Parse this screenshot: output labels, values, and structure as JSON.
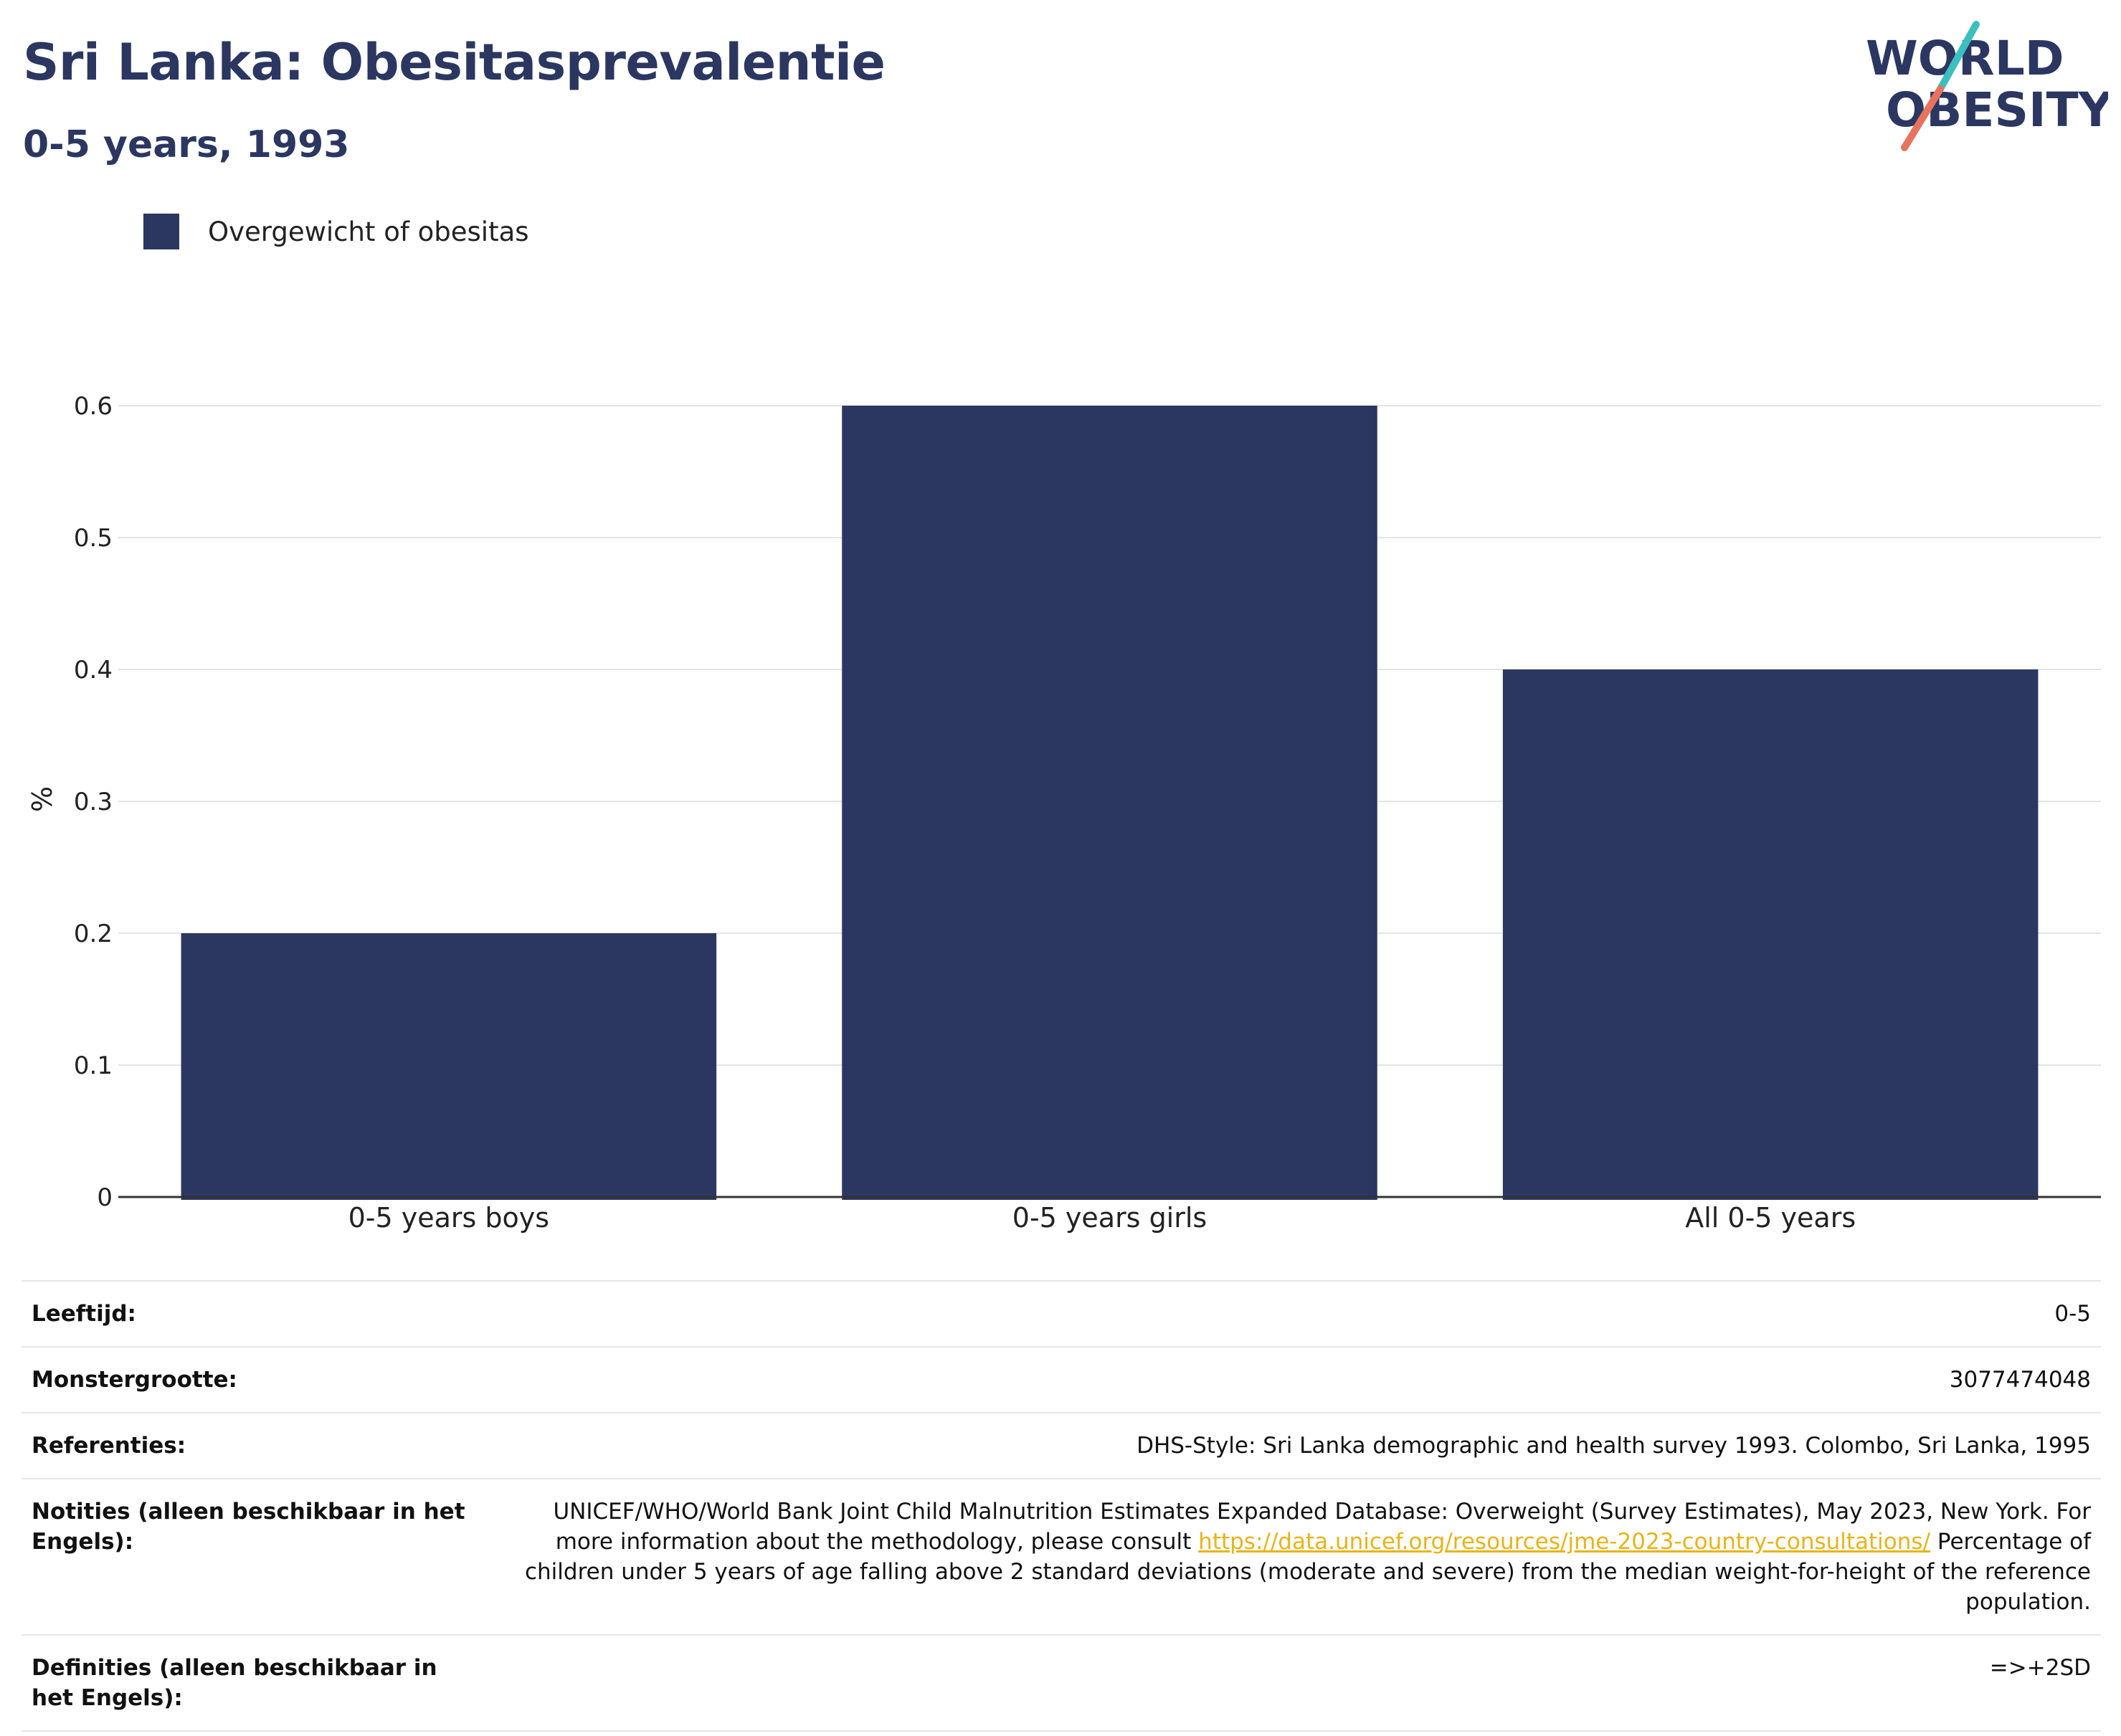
{
  "header": {
    "title": "Sri Lanka: Obesitasprevalentie",
    "subtitle": "0-5 years, 1993"
  },
  "logo": {
    "line1": "WORLD",
    "line2": "OBESITY",
    "colors": {
      "text": "#2b3761",
      "slash_top": "#3bbfbf",
      "slash_bottom": "#e8735d"
    }
  },
  "legend": {
    "label": "Overgewicht of obesitas",
    "color": "#2b3761"
  },
  "chart_data": {
    "type": "bar",
    "categories": [
      "0-5 years boys",
      "0-5 years girls",
      "All 0-5 years"
    ],
    "series": [
      {
        "name": "Overgewicht of obesitas",
        "values": [
          0.2,
          0.6,
          0.4
        ],
        "color": "#2b3761"
      }
    ],
    "ylabel": "%",
    "ylim": [
      0,
      0.6
    ],
    "yticks": [
      "0",
      "0.1",
      "0.2",
      "0.3",
      "0.4",
      "0.5",
      "0.6"
    ],
    "grid": true,
    "legend_position": "top-left"
  },
  "info": {
    "rows": [
      {
        "key": "Leeftijd:",
        "value": "0-5"
      },
      {
        "key": "Monstergrootte:",
        "value": "3077474048"
      },
      {
        "key": "Referenties:",
        "value": "DHS-Style: Sri Lanka demographic and health survey 1993. Colombo, Sri Lanka, 1995"
      },
      {
        "key": "Notities (alleen beschikbaar in het Engels):",
        "value_pre": "UNICEF/WHO/World Bank Joint Child Malnutrition Estimates Expanded Database: Overweight (Survey Estimates), May 2023, New York. For more information about the methodology, please consult",
        "link": "https://data.unicef.org/resources/jme-2023-country-consultations/",
        "value_post": "Percentage of children under 5 years of age falling above 2 standard deviations (moderate and severe) from the median weight-for-height of the reference population."
      },
      {
        "key": "Definities (alleen beschikbaar in het Engels):",
        "value": "=>+2SD"
      }
    ]
  }
}
